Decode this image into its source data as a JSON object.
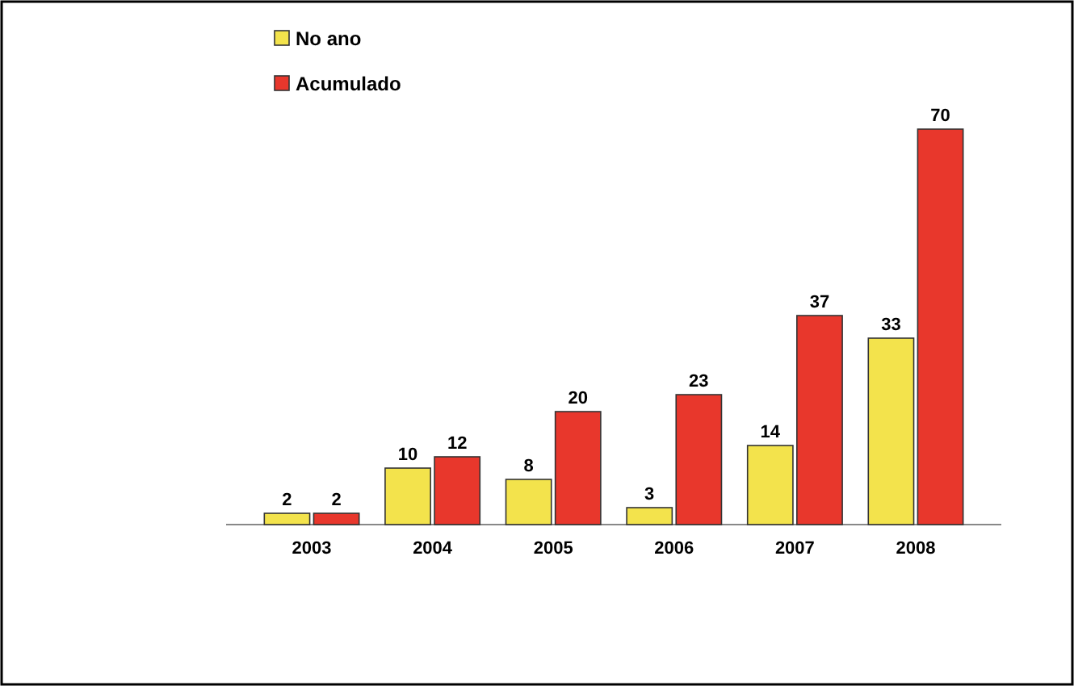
{
  "chart_data": {
    "type": "bar",
    "categories": [
      "2003",
      "2004",
      "2005",
      "2006",
      "2007",
      "2008"
    ],
    "series": [
      {
        "name": "No ano",
        "color": "#f3e34c",
        "values": [
          2,
          10,
          8,
          3,
          14,
          33
        ]
      },
      {
        "name": "Acumulado",
        "color": "#e8372c",
        "values": [
          2,
          12,
          20,
          23,
          37,
          70
        ]
      }
    ],
    "data_labels": true,
    "legend": "top left",
    "grid": false
  }
}
